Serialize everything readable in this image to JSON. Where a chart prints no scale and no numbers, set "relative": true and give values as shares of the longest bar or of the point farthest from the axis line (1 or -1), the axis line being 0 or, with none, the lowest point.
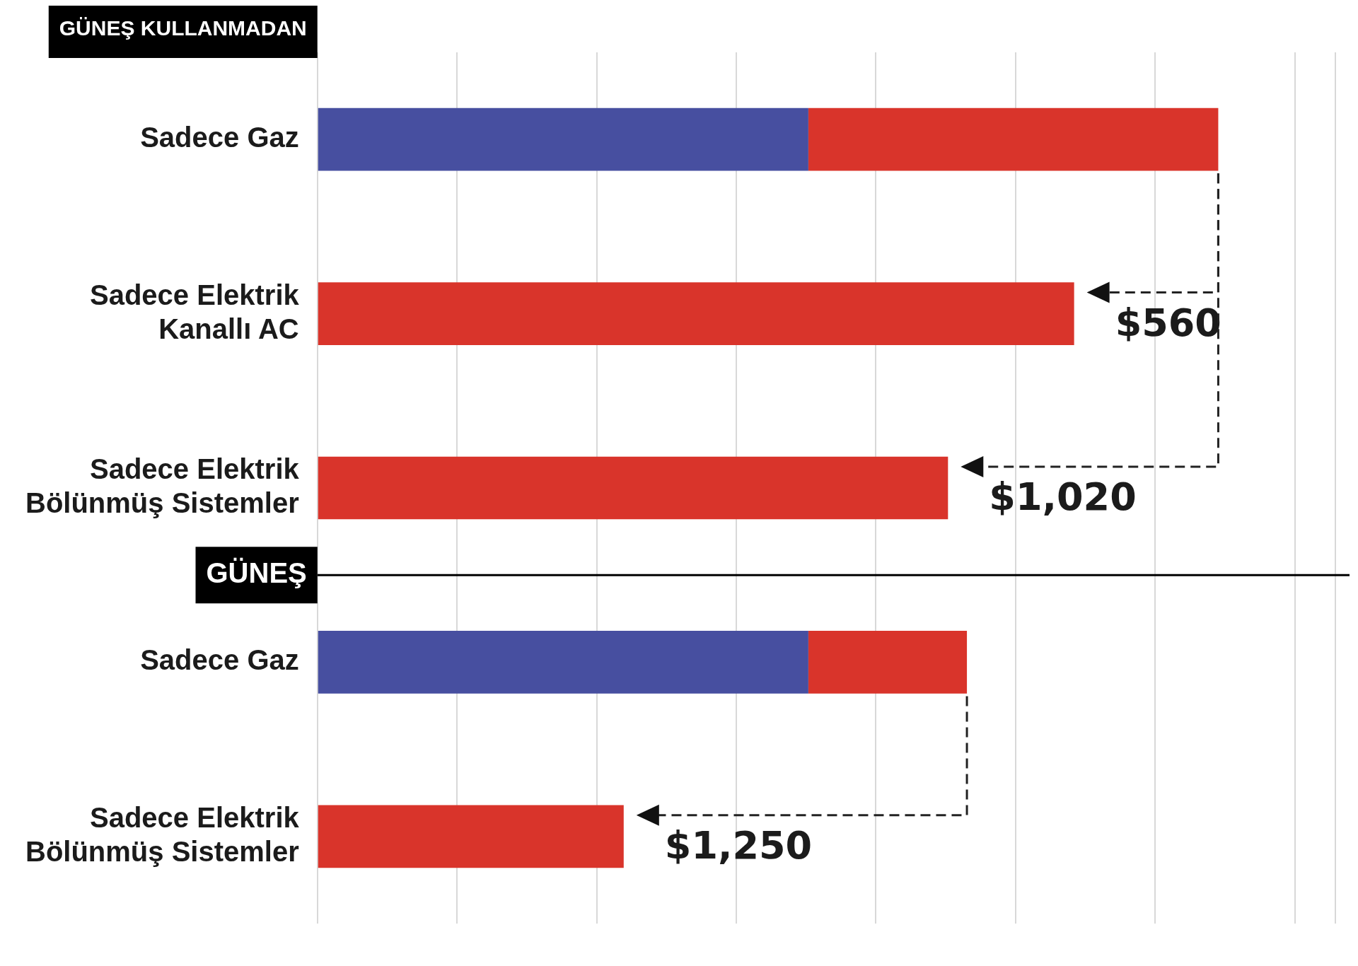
{
  "chart_data": {
    "type": "bar",
    "orientation": "horizontal",
    "stacked": true,
    "relative": true,
    "grid": "x",
    "legend": false,
    "categories": [
      "Sadece Gaz",
      "Sadece Elektrik\nKanallı AC",
      "Sadece Elektrik\nBölünmüş Sistemler",
      "Sadece Gaz",
      "Sadece Elektrik\nBölünmüş Sistemler"
    ],
    "series": [
      {
        "color": "#474fa0",
        "values": [
          0.545,
          null,
          null,
          0.545,
          null
        ]
      },
      {
        "color": "#d9342b",
        "values": [
          0.455,
          0.84,
          0.7,
          0.176,
          0.34
        ]
      }
    ],
    "annotations": [
      "GÜNEŞ KULLANMADAN",
      "$560",
      "$1,020",
      "GÜNEŞ",
      "$1,250"
    ]
  }
}
